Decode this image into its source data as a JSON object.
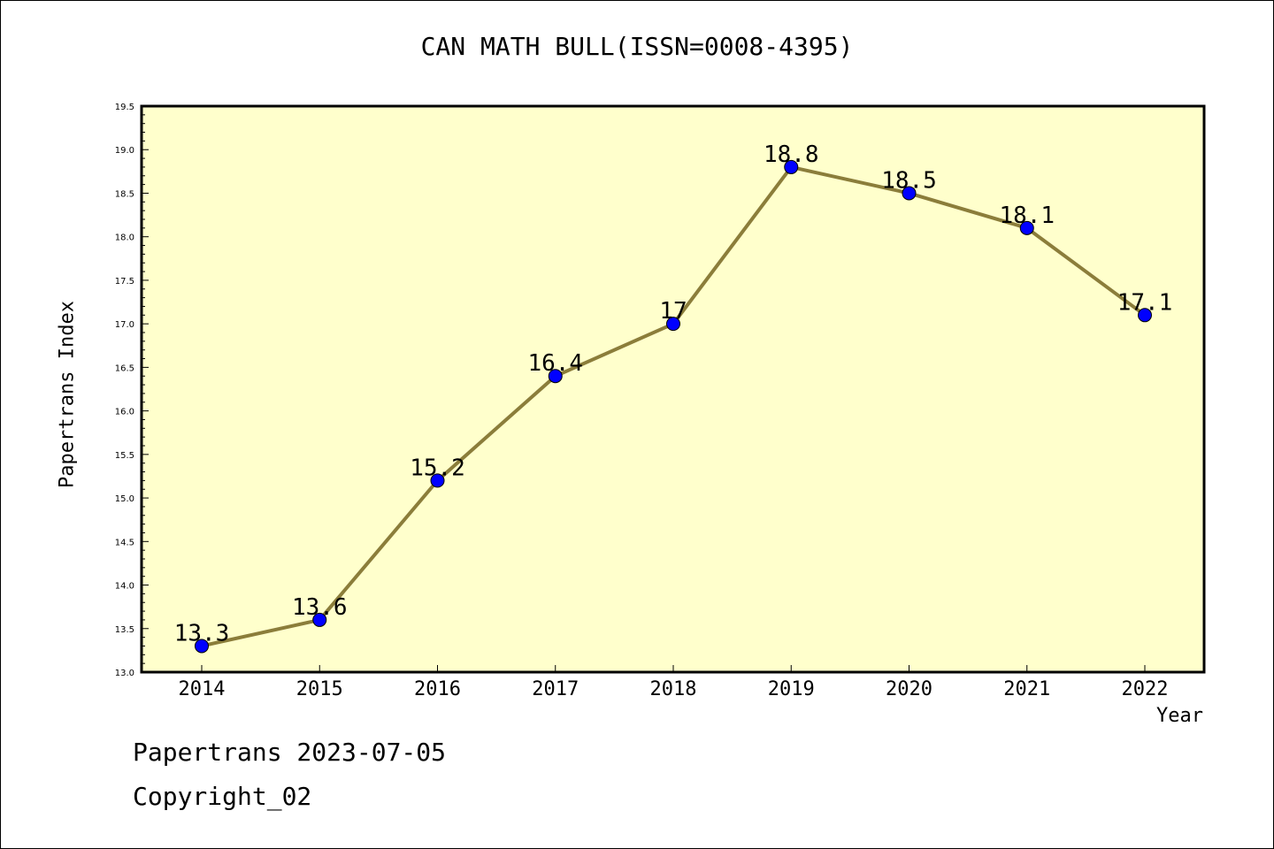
{
  "chart_data": {
    "type": "line",
    "title": "CAN MATH BULL(ISSN=0008-4395)",
    "xlabel": "Year",
    "ylabel": "Papertrans Index",
    "categories": [
      "2014",
      "2015",
      "2016",
      "2017",
      "2018",
      "2019",
      "2020",
      "2021",
      "2022"
    ],
    "series": [
      {
        "values": [
          13.3,
          13.6,
          15.2,
          16.4,
          17,
          18.8,
          18.5,
          18.1,
          17.1
        ],
        "data_labels": [
          "13.3",
          "13.6",
          "15.2",
          "16.4",
          "17",
          "18.8",
          "18.5",
          "18.1",
          "17.1"
        ]
      }
    ],
    "ylim": [
      13.0,
      19.5
    ],
    "yticks": [
      "13.0",
      "13.5",
      "14.0",
      "14.5",
      "15.0",
      "15.5",
      "16.0",
      "16.5",
      "17.0",
      "17.5",
      "18.0",
      "18.5",
      "19.0",
      "19.5"
    ],
    "grid": false,
    "colors": {
      "plot_bg": "#ffffcc",
      "line": "#8b7d3a",
      "marker": "#0000ff"
    }
  },
  "footer": {
    "line1": "Papertrans 2023-07-05",
    "line2": "Copyright_02"
  }
}
